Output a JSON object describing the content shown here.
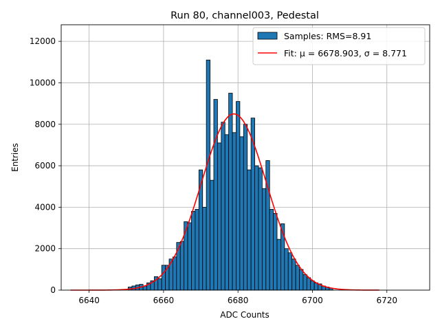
{
  "chart_data": {
    "type": "bar",
    "title": "Run 80, channel003, Pedestal",
    "xlabel": "ADC Counts",
    "ylabel": "Entries",
    "xlim": [
      6632.5,
      6731.5
    ],
    "ylim": [
      0,
      12800
    ],
    "xticks": [
      6640,
      6660,
      6680,
      6700,
      6720
    ],
    "yticks": [
      0,
      2000,
      4000,
      6000,
      8000,
      10000,
      12000
    ],
    "grid": true,
    "legend_position": "top-right",
    "legend": [
      "Samples: RMS=8.91",
      "Fit: μ = 6678.903, σ = 8.771"
    ],
    "bar_color": "#1f77b4",
    "fit_color": "#ff0000",
    "bin_width": 1,
    "bins": [
      [
        6651,
        150
      ],
      [
        6652,
        200
      ],
      [
        6653,
        250
      ],
      [
        6654,
        280
      ],
      [
        6655,
        200
      ],
      [
        6656,
        350
      ],
      [
        6657,
        450
      ],
      [
        6658,
        650
      ],
      [
        6659,
        550
      ],
      [
        6660,
        1200
      ],
      [
        6661,
        1200
      ],
      [
        6662,
        1500
      ],
      [
        6663,
        1600
      ],
      [
        6664,
        2300
      ],
      [
        6665,
        2350
      ],
      [
        6666,
        3300
      ],
      [
        6667,
        3250
      ],
      [
        6668,
        3800
      ],
      [
        6669,
        3900
      ],
      [
        6670,
        5800
      ],
      [
        6671,
        4000
      ],
      [
        6672,
        11100
      ],
      [
        6673,
        5300
      ],
      [
        6674,
        9200
      ],
      [
        6675,
        7100
      ],
      [
        6676,
        8100
      ],
      [
        6677,
        7500
      ],
      [
        6678,
        9500
      ],
      [
        6679,
        7600
      ],
      [
        6680,
        9100
      ],
      [
        6681,
        7400
      ],
      [
        6682,
        8000
      ],
      [
        6683,
        5800
      ],
      [
        6684,
        8300
      ],
      [
        6685,
        6000
      ],
      [
        6686,
        5900
      ],
      [
        6687,
        4900
      ],
      [
        6688,
        6250
      ],
      [
        6689,
        3900
      ],
      [
        6690,
        3700
      ],
      [
        6691,
        2450
      ],
      [
        6692,
        3200
      ],
      [
        6693,
        2000
      ],
      [
        6694,
        1800
      ],
      [
        6695,
        1500
      ],
      [
        6696,
        1200
      ],
      [
        6697,
        1000
      ],
      [
        6698,
        750
      ],
      [
        6699,
        600
      ],
      [
        6700,
        450
      ],
      [
        6701,
        350
      ],
      [
        6702,
        300
      ],
      [
        6703,
        200
      ],
      [
        6704,
        150
      ],
      [
        6705,
        100
      ]
    ],
    "fit": {
      "mu": 6678.903,
      "sigma": 8.771,
      "amplitude": 8500,
      "x_range": [
        6635,
        6718
      ]
    }
  }
}
